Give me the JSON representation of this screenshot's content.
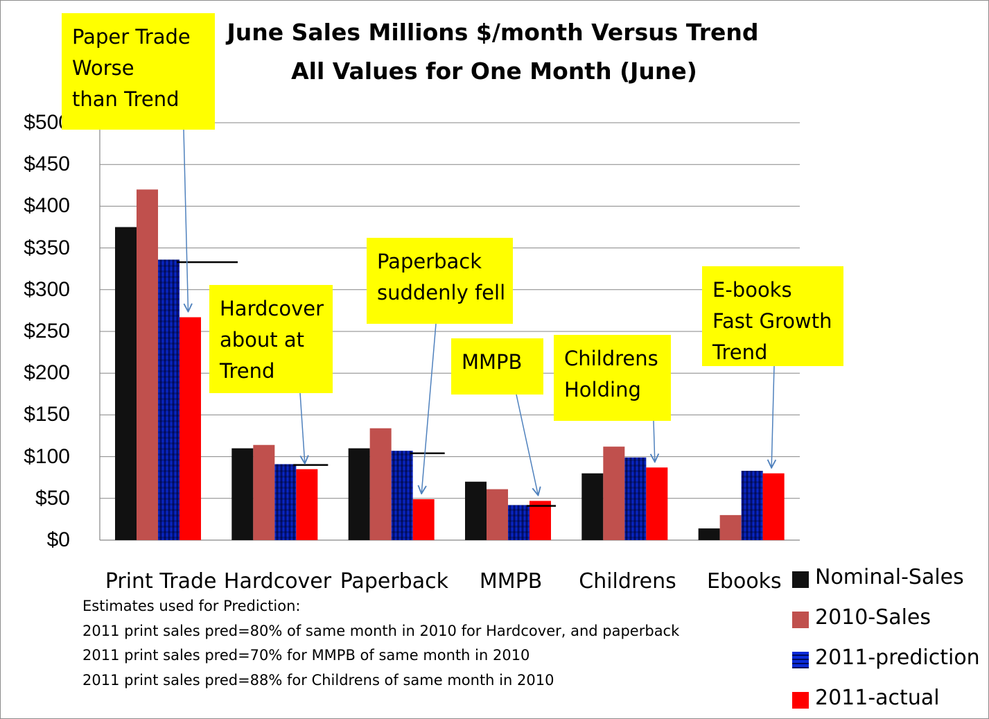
{
  "chart_data": {
    "type": "bar",
    "title": "June Sales Millions $/month Versus Trend",
    "subtitle": "All Values for One Month (June)",
    "categories": [
      "Print Trade",
      "Hardcover",
      "Paperback",
      "MMPB",
      "Childrens",
      "Ebooks"
    ],
    "series": [
      {
        "name": "Nominal-Sales",
        "color": "#111111",
        "values": [
          375,
          110,
          110,
          70,
          80,
          14
        ]
      },
      {
        "name": "2010-Sales",
        "color": "#c0504d",
        "values": [
          420,
          114,
          134,
          61,
          112,
          30
        ]
      },
      {
        "name": "2011-prediction",
        "color": "#0033ff",
        "values": [
          336,
          91,
          107,
          42,
          99,
          83
        ]
      },
      {
        "name": "2011-actual",
        "color": "#ff0000",
        "values": [
          267,
          85,
          49,
          47,
          87,
          80
        ]
      }
    ],
    "trend_markers": [
      333,
      90,
      104,
      41,
      null,
      null
    ],
    "yticks": [
      "$0",
      "$50",
      "$100",
      "$150",
      "$200",
      "$250",
      "$300",
      "$350",
      "$400",
      "$450",
      "$500"
    ],
    "ylim": [
      0,
      500
    ],
    "grid": true,
    "legend_position": "bottom-right",
    "xlabel": "",
    "ylabel": ""
  },
  "annotations": [
    {
      "lines": [
        "Paper Trade",
        "Worse",
        "than Trend"
      ],
      "points_to": "Print Trade 2011-actual"
    },
    {
      "lines": [
        "Hardcover",
        "about at",
        "Trend"
      ],
      "points_to": "Hardcover 2011-actual"
    },
    {
      "lines": [
        "Paperback",
        "suddenly fell"
      ],
      "points_to": "Paperback 2011-actual"
    },
    {
      "lines": [
        "MMPB"
      ],
      "points_to": "MMPB 2011-actual"
    },
    {
      "lines": [
        "Childrens",
        "Holding"
      ],
      "points_to": "Childrens 2011-actual"
    },
    {
      "lines": [
        "E-books",
        "Fast Growth",
        "Trend"
      ],
      "points_to": "Ebooks 2011-actual"
    }
  ],
  "footnotes": [
    "Estimates used for Prediction:",
    "2011 print sales pred=80% of same month in 2010 for Hardcover, and paperback",
    "2011 print sales pred=70% for MMPB of same month in 2010",
    "2011 print sales pred=88% for Childrens of same month in 2010"
  ],
  "colors": {
    "annotation_bg": "#ffff00",
    "arrow": "#4f81bd",
    "gridline": "#868686"
  }
}
